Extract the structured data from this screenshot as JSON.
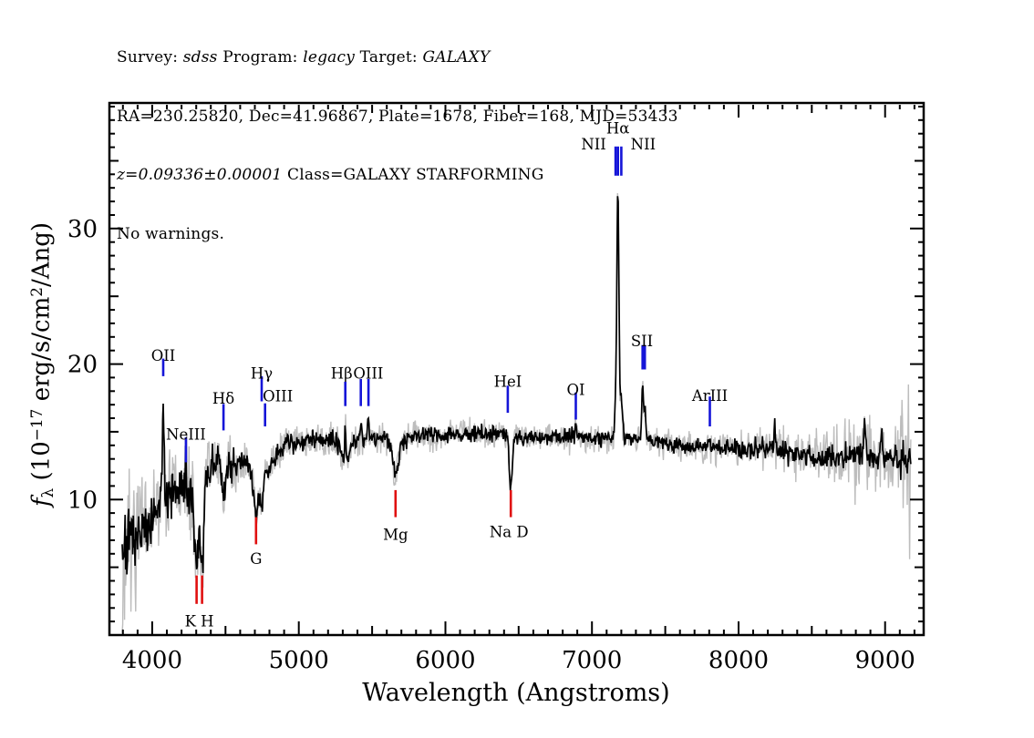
{
  "header": {
    "line1": [
      {
        "text": "Survey: "
      },
      {
        "text": "sdss",
        "italic": true
      },
      {
        "text": " Program: "
      },
      {
        "text": "legacy",
        "italic": true
      },
      {
        "text": " Target: "
      },
      {
        "text": "GALAXY",
        "italic": true
      }
    ],
    "line2": [
      {
        "text": "RA=230.25820, Dec=41.96867, Plate=1678, Fiber=168, MJD=53433"
      }
    ],
    "line3": [
      {
        "text": "z=0.09336±0.00001",
        "italic": true
      },
      {
        "text": " Class=GALAXY STARFORMING"
      }
    ],
    "line4": [
      {
        "text": "No warnings."
      }
    ]
  },
  "chart_data": {
    "type": "line",
    "title": "",
    "xlabel": "Wavelength (Angstroms)",
    "ylabel": "f_lambda (10^-17 erg/s/cm^2/Ang)",
    "ylabel_parts": {
      "fsym": "f",
      "sub": "λ",
      "mid": " (10",
      "exp": "−17",
      "units": " erg/s/cm",
      "units_exp": "2",
      "end": "/Ang)"
    },
    "xlim": [
      3708,
      9263
    ],
    "ylim": [
      0,
      39.2
    ],
    "xticks_labeled": [
      4000,
      5000,
      6000,
      7000,
      8000,
      9000
    ],
    "xtick_minor_step": 100,
    "xtick_medium_step": 500,
    "yticks_labeled": [
      10,
      20,
      30
    ],
    "ytick_minor_step": 1,
    "ytick_medium_step": 5,
    "grid": false,
    "legend": false,
    "colors": {
      "spectrum": "#000000",
      "noise_spectrum": "#bdbdbd",
      "emission_marker": "#1515d8",
      "absorption_marker": "#e01010"
    },
    "spectrum": {
      "x_start": 3795,
      "x_end": 9175,
      "step": 4,
      "seed": 7,
      "gray_scale": 1.9,
      "continuum": [
        [
          3795,
          6.4
        ],
        [
          3850,
          6.6
        ],
        [
          3920,
          7.4
        ],
        [
          3990,
          8.4
        ],
        [
          4060,
          9.7
        ],
        [
          4130,
          10.3
        ],
        [
          4200,
          10.8
        ],
        [
          4260,
          10.2
        ],
        [
          4330,
          10.8
        ],
        [
          4400,
          12.3
        ],
        [
          4470,
          13.0
        ],
        [
          4540,
          12.5
        ],
        [
          4620,
          12.9
        ],
        [
          4700,
          12.1
        ],
        [
          4760,
          11.5
        ],
        [
          4810,
          12.5
        ],
        [
          4870,
          13.8
        ],
        [
          4940,
          14.3
        ],
        [
          5050,
          14.4
        ],
        [
          5150,
          14.3
        ],
        [
          5250,
          14.3
        ],
        [
          5350,
          14.3
        ],
        [
          5450,
          14.5
        ],
        [
          5550,
          14.5
        ],
        [
          5650,
          14.4
        ],
        [
          5750,
          14.6
        ],
        [
          5850,
          14.8
        ],
        [
          5950,
          14.7
        ],
        [
          6050,
          14.8
        ],
        [
          6150,
          14.9
        ],
        [
          6250,
          14.9
        ],
        [
          6350,
          14.9
        ],
        [
          6450,
          14.7
        ],
        [
          6550,
          14.6
        ],
        [
          6650,
          14.6
        ],
        [
          6750,
          14.6
        ],
        [
          6850,
          14.7
        ],
        [
          6950,
          14.6
        ],
        [
          7050,
          14.5
        ],
        [
          7150,
          14.5
        ],
        [
          7250,
          14.5
        ],
        [
          7350,
          14.4
        ],
        [
          7450,
          14.2
        ],
        [
          7550,
          14.1
        ],
        [
          7650,
          14.0
        ],
        [
          7750,
          13.9
        ],
        [
          7850,
          13.9
        ],
        [
          7950,
          13.8
        ],
        [
          8050,
          13.7
        ],
        [
          8150,
          13.8
        ],
        [
          8250,
          13.7
        ],
        [
          8350,
          13.4
        ],
        [
          8450,
          13.2
        ],
        [
          8550,
          13.1
        ],
        [
          8650,
          13.2
        ],
        [
          8750,
          13.3
        ],
        [
          8850,
          13.3
        ],
        [
          8950,
          13.2
        ],
        [
          9050,
          13.0
        ],
        [
          9150,
          12.9
        ],
        [
          9175,
          12.8
        ]
      ],
      "noise_sigma": [
        [
          3795,
          1.35
        ],
        [
          3900,
          1.2
        ],
        [
          4000,
          1.05
        ],
        [
          4150,
          0.95
        ],
        [
          4320,
          0.95
        ],
        [
          4450,
          0.75
        ],
        [
          4600,
          0.55
        ],
        [
          4800,
          0.45
        ],
        [
          5000,
          0.4
        ],
        [
          5400,
          0.36
        ],
        [
          5900,
          0.33
        ],
        [
          6500,
          0.3
        ],
        [
          7000,
          0.3
        ],
        [
          7500,
          0.33
        ],
        [
          8000,
          0.38
        ],
        [
          8400,
          0.45
        ],
        [
          8700,
          0.5
        ],
        [
          8900,
          0.55
        ],
        [
          9000,
          0.5
        ],
        [
          9100,
          0.6
        ],
        [
          9175,
          0.75
        ]
      ],
      "gray_boost": [
        [
          3795,
          6
        ],
        [
          3815,
          1.4
        ],
        [
          3900,
          1
        ],
        [
          8550,
          1
        ],
        [
          8700,
          1.5
        ],
        [
          8870,
          1.7
        ],
        [
          8960,
          1.4
        ],
        [
          9040,
          1.2
        ],
        [
          9100,
          1.7
        ],
        [
          9150,
          2.2
        ],
        [
          9175,
          3.2
        ]
      ],
      "features": [
        {
          "name": "OII",
          "c": 4075,
          "a": 8.0,
          "w": 5
        },
        {
          "name": "NeIII",
          "c": 4230,
          "a": 1.9,
          "w": 5
        },
        {
          "name": "Ca-K",
          "c": 4303,
          "a": -6.2,
          "w": 11
        },
        {
          "name": "Ca-H",
          "c": 4340,
          "a": -6.0,
          "w": 11
        },
        {
          "name": "Hdelta-abs",
          "c": 4486,
          "a": -2.4,
          "w": 14
        },
        {
          "name": "G-band",
          "c": 4708,
          "a": -2.8,
          "w": 16
        },
        {
          "name": "Hgamma-abs",
          "c": 4747,
          "a": -1.7,
          "w": 12
        },
        {
          "name": "OIII-4363",
          "c": 4770,
          "a": 0.7,
          "w": 5
        },
        {
          "name": "Hbeta-abs",
          "c": 5317,
          "a": -1.8,
          "w": 20
        },
        {
          "name": "Hbeta-em",
          "c": 5317,
          "a": 2.9,
          "w": 5
        },
        {
          "name": "OIII-4959",
          "c": 5423,
          "a": 0.9,
          "w": 5
        },
        {
          "name": "OIII-5007",
          "c": 5475,
          "a": 1.7,
          "w": 5
        },
        {
          "name": "Mg",
          "c": 5660,
          "a": -2.6,
          "w": 20
        },
        {
          "name": "HeI",
          "c": 6426,
          "a": 0.6,
          "w": 5
        },
        {
          "name": "NaD",
          "c": 6446,
          "a": -3.5,
          "w": 11
        },
        {
          "name": "OI",
          "c": 6890,
          "a": 1.0,
          "w": 5
        },
        {
          "name": "NII-6548",
          "c": 7161,
          "a": 2.4,
          "w": 6
        },
        {
          "name": "Halpha",
          "c": 7177,
          "a": 18.5,
          "w": 7
        },
        {
          "name": "NII-6583",
          "c": 7200,
          "a": 3.2,
          "w": 7
        },
        {
          "name": "SII-6716",
          "c": 7345,
          "a": 3.8,
          "w": 6
        },
        {
          "name": "SII-6731",
          "c": 7361,
          "a": 2.4,
          "w": 6
        },
        {
          "name": "sky-8245",
          "c": 8245,
          "a": 1.7,
          "w": 5
        },
        {
          "name": "sky-8860",
          "c": 8860,
          "a": 2.4,
          "w": 6
        },
        {
          "name": "sky-8975",
          "c": 8975,
          "a": 1.5,
          "w": 5
        }
      ]
    },
    "line_markers": [
      {
        "label": "OII",
        "x": [
          4075
        ],
        "color": "blue",
        "tick": [
          19.1,
          20.4
        ],
        "label_y": 20.6
      },
      {
        "label": "NeIII",
        "x": [
          4230
        ],
        "color": "blue",
        "tick": [
          12.75,
          14.6
        ],
        "label_y": 14.8
      },
      {
        "label": "Hδ",
        "x": [
          4486
        ],
        "color": "blue",
        "tick": [
          15.1,
          17.05
        ],
        "label_y": 17.45
      },
      {
        "label": "Hγ",
        "x": [
          4747
        ],
        "color": "blue",
        "tick": [
          17.25,
          19.1
        ],
        "label_y": 19.3
      },
      {
        "label": "OIII",
        "x": [
          4770
        ],
        "color": "blue",
        "tick": [
          15.4,
          17.1
        ],
        "label_y": 17.6,
        "label_dx": 14
      },
      {
        "label": "Hβ",
        "x": [
          5317
        ],
        "color": "blue",
        "tick": [
          16.9,
          18.7
        ],
        "label_y": 19.3,
        "label_dx": -4
      },
      {
        "label": "OIII",
        "x": [
          5423,
          5475
        ],
        "color": "blue",
        "tick": [
          16.9,
          18.9
        ],
        "label_y": 19.3,
        "label_dx": 4
      },
      {
        "label": "HeI",
        "x": [
          6426
        ],
        "color": "blue",
        "tick": [
          16.4,
          18.4
        ],
        "label_y": 18.7
      },
      {
        "label": "OI",
        "x": [
          6890
        ],
        "color": "blue",
        "tick": [
          15.9,
          17.9
        ],
        "label_y": 18.1
      },
      {
        "label": "NII",
        "x": [
          7161
        ],
        "color": "blue",
        "tick": [
          33.9,
          36.05
        ],
        "label_y": 36.2,
        "label_dx": -24
      },
      {
        "label": "Hα",
        "x": [
          7177
        ],
        "color": "blue",
        "tick": [
          33.9,
          36.05
        ],
        "label_y": 37.4
      },
      {
        "label": "NII",
        "x": [
          7200
        ],
        "color": "blue",
        "tick": [
          33.9,
          36.05
        ],
        "label_y": 36.2,
        "label_dx": 24
      },
      {
        "label": "SII",
        "x": [
          7345,
          7361
        ],
        "color": "blue",
        "tick": [
          19.6,
          21.4
        ],
        "label_y": 21.7,
        "label_dx": -2
      },
      {
        "label": "ArIII",
        "x": [
          7804
        ],
        "color": "blue",
        "tick": [
          15.4,
          17.6
        ],
        "label_y": 17.65
      },
      {
        "label": "K H",
        "x": [
          4303,
          4340
        ],
        "color": "red",
        "tick": [
          2.3,
          4.4
        ],
        "label_y": 1.0
      },
      {
        "label": "G",
        "x": [
          4708
        ],
        "color": "red",
        "tick": [
          6.7,
          8.7
        ],
        "label_y": 5.6
      },
      {
        "label": "Mg",
        "x": [
          5660
        ],
        "color": "red",
        "tick": [
          8.7,
          10.7
        ],
        "label_y": 7.4
      },
      {
        "label": "Na D",
        "x": [
          6446
        ],
        "color": "red",
        "tick": [
          8.7,
          10.7
        ],
        "label_y": 7.6,
        "label_dx": -2
      }
    ]
  }
}
